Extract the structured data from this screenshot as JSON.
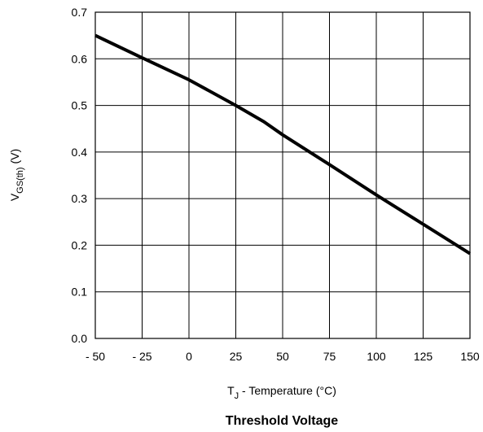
{
  "chart_data": {
    "type": "line",
    "title": "Threshold Voltage",
    "xlabel": {
      "main": "T",
      "sub": "J",
      "rest": " - Temperature (°C)"
    },
    "ylabel": {
      "main": "V",
      "sub": "GS(th)",
      "rest": " (V)"
    },
    "xlim": [
      -50,
      150
    ],
    "ylim": [
      0.0,
      0.7
    ],
    "x_ticks": [
      -50,
      -25,
      0,
      25,
      50,
      75,
      100,
      125,
      150
    ],
    "x_tick_labels": [
      "- 50",
      "- 25",
      "0",
      "25",
      "50",
      "75",
      "100",
      "125",
      "150"
    ],
    "y_ticks": [
      0.0,
      0.1,
      0.2,
      0.3,
      0.4,
      0.5,
      0.6,
      0.7
    ],
    "y_tick_labels": [
      "0.0",
      "0.1",
      "0.2",
      "0.3",
      "0.4",
      "0.5",
      "0.6",
      "0.7"
    ],
    "grid": true,
    "series": [
      {
        "color": "#000000",
        "x": [
          -50,
          -25,
          0,
          25,
          40,
          50,
          75,
          100,
          125,
          150
        ],
        "y": [
          0.65,
          0.602,
          0.555,
          0.5,
          0.465,
          0.437,
          0.373,
          0.308,
          0.245,
          0.182
        ]
      }
    ]
  }
}
